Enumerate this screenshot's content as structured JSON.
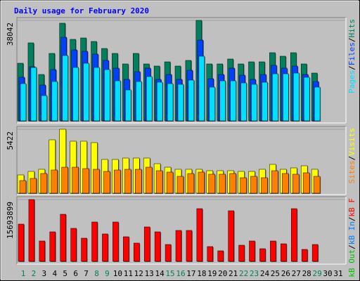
{
  "title": "Daily usage for February 2020",
  "legend_separator": "/",
  "chart_data": [
    {
      "type": "bar",
      "ylim": [
        0,
        38042
      ],
      "yticks": [
        38042
      ],
      "series": [
        {
          "name": "Hits",
          "color": "#00805c",
          "values": [
            21814,
            29529,
            17558,
            25539,
            36978,
            30859,
            31391,
            30061,
            27401,
            25539,
            21548,
            25539,
            21548,
            20750,
            22346,
            20750,
            22879,
            38042,
            21548,
            21548,
            23411,
            21548,
            22346,
            22346,
            25805,
            24475,
            25805,
            21548,
            18090,
            null,
            null
          ]
        },
        {
          "name": "Files",
          "color": "#0040ff",
          "values": [
            16494,
            20484,
            13568,
            19420,
            31658,
            26869,
            26337,
            25273,
            22879,
            19952,
            15696,
            18622,
            19952,
            15696,
            17558,
            15696,
            19154,
            30593,
            15962,
            17558,
            19952,
            17292,
            15696,
            17558,
            21016,
            19952,
            20750,
            17558,
            14898,
            null,
            null
          ]
        },
        {
          "name": "Pages",
          "color": "#00e0ff",
          "values": [
            14100,
            20218,
            9577,
            14898,
            24741,
            20218,
            21814,
            20218,
            19420,
            15164,
            11705,
            14898,
            16760,
            14632,
            14100,
            13834,
            15430,
            24475,
            12769,
            15164,
            15164,
            14366,
            13834,
            14632,
            17824,
            17824,
            18090,
            16494,
            12769,
            null,
            null
          ]
        }
      ]
    },
    {
      "type": "bar",
      "ylim": [
        0,
        5422
      ],
      "yticks": [
        5422
      ],
      "series": [
        {
          "name": "Visits",
          "color": "#ffff00",
          "values": [
            1549,
            1847,
            2026,
            4528,
            5422,
            4409,
            4409,
            4290,
            2860,
            2860,
            2979,
            2979,
            2979,
            2502,
            2204,
            2026,
            2026,
            2026,
            1907,
            1907,
            1907,
            1847,
            1847,
            2026,
            2443,
            2026,
            2145,
            2324,
            2026,
            null,
            null
          ]
        },
        {
          "name": "Sites",
          "color": "#ff8000",
          "values": [
            1072,
            1251,
            1668,
            1966,
            2204,
            2204,
            2085,
            2026,
            1847,
            1966,
            2026,
            2026,
            2204,
            1907,
            1787,
            1430,
            1668,
            1787,
            1609,
            1609,
            1668,
            1311,
            1430,
            1311,
            1907,
            1668,
            1609,
            1728,
            1430,
            null,
            null
          ]
        }
      ]
    },
    {
      "type": "bar",
      "ylim": [
        0,
        15693899
      ],
      "yticks": [
        15693899
      ],
      "categories": [
        "1",
        "2",
        "3",
        "4",
        "5",
        "6",
        "7",
        "8",
        "9",
        "10",
        "11",
        "12",
        "13",
        "14",
        "15",
        "16",
        "17",
        "18",
        "19",
        "20",
        "21",
        "22",
        "23",
        "24",
        "25",
        "26",
        "27",
        "28",
        "29",
        "30",
        "31"
      ],
      "category_colors": [
        "#00805c",
        "#00805c",
        "#000000",
        "#000000",
        "#000000",
        "#000000",
        "#000000",
        "#00805c",
        "#00805c",
        "#000000",
        "#000000",
        "#000000",
        "#000000",
        "#000000",
        "#00805c",
        "#00805c",
        "#000000",
        "#000000",
        "#000000",
        "#000000",
        "#000000",
        "#00805c",
        "#00805c",
        "#000000",
        "#000000",
        "#000000",
        "#000000",
        "#000000",
        "#00805c",
        "#000000",
        "#000000"
      ],
      "series": [
        {
          "name": "kB F",
          "color": "#ff0000",
          "values": [
            9452020,
            15693899,
            5171860,
            7490280,
            11948780,
            8381980,
            5885220,
            9987040,
            6955260,
            9987040,
            6241900,
            4636840,
            8738660,
            7490280,
            4280160,
            7846960,
            7846960,
            13375500,
            3745140,
            2675100,
            12840480,
            4101820,
            5171860,
            3210120,
            5171860,
            4458500,
            13375500,
            3031780,
            4280160,
            null,
            null
          ]
        },
        {
          "name": "kB In",
          "color": "#0080ff",
          "values": [
            0,
            0,
            0,
            0,
            0,
            0,
            0,
            0,
            0,
            0,
            0,
            0,
            0,
            0,
            0,
            0,
            0,
            0,
            0,
            0,
            0,
            0,
            0,
            0,
            0,
            0,
            0,
            0,
            0,
            null,
            null
          ]
        },
        {
          "name": "kB Out",
          "color": "#00c000",
          "values": [
            0,
            0,
            0,
            0,
            0,
            0,
            0,
            0,
            0,
            0,
            0,
            0,
            0,
            0,
            0,
            0,
            0,
            0,
            0,
            0,
            0,
            0,
            0,
            0,
            0,
            0,
            0,
            0,
            0,
            null,
            null
          ]
        }
      ]
    }
  ]
}
